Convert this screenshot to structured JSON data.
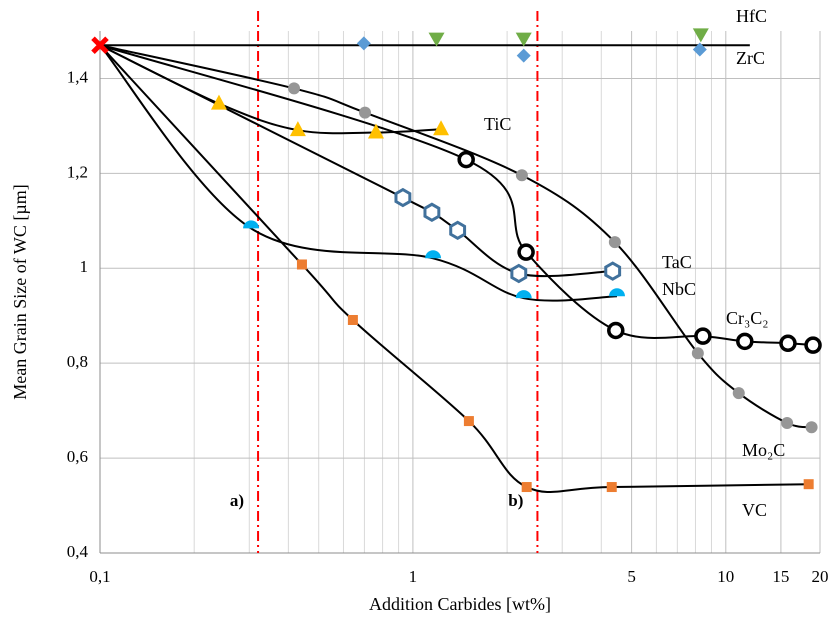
{
  "chart_data": {
    "type": "line",
    "xlabel": "Addition Carbides [wt%]",
    "ylabel": "Mean Grain Size of WC [µm]",
    "xscale": "log",
    "xlim": [
      0.1,
      20
    ],
    "ylim": [
      0.4,
      1.5
    ],
    "xticks": [
      {
        "value": 0.1,
        "label": "0,1"
      },
      1,
      5,
      10,
      15,
      20
    ],
    "yticks": [
      {
        "value": 0.4,
        "label": "0,4"
      },
      {
        "value": 0.6,
        "label": "0,6"
      },
      {
        "value": 0.8,
        "label": "0,8"
      },
      1,
      {
        "value": 1.2,
        "label": "1,2"
      },
      {
        "value": 1.4,
        "label": "1,4"
      }
    ],
    "x_minor_grid": [
      0.2,
      0.3,
      0.4,
      0.5,
      0.6,
      0.7,
      0.8,
      0.9,
      2,
      3,
      4,
      6,
      7,
      8,
      9
    ],
    "grid": true,
    "origin": {
      "x": 0.1,
      "y": 1.47,
      "color": "#ff0000"
    },
    "vlines": [
      {
        "x": 0.32,
        "label": "a)",
        "color": "#ff0000"
      },
      {
        "x": 2.5,
        "label": "b)",
        "color": "#ff0000"
      }
    ],
    "series": [
      {
        "name": "HfC",
        "color": "#70ad47",
        "marker": "triangle-down",
        "x": [
          1.19,
          2.26,
          8.32
        ],
        "values": [
          1.484,
          1.484,
          1.493
        ]
      },
      {
        "name": "ZrC",
        "color": "#5b9bd5",
        "marker": "diamond",
        "trend": "flat",
        "x": [
          0.697,
          2.26,
          8.26
        ],
        "values": [
          1.474,
          1.448,
          1.461
        ]
      },
      {
        "name": "TiC",
        "color": "#ffc000",
        "marker": "triangle",
        "x": [
          0.24,
          0.429,
          0.762,
          1.23
        ],
        "values": [
          1.347,
          1.291,
          1.286,
          1.293
        ]
      },
      {
        "name": "TaC",
        "color": "#41719c",
        "marker": "hexagon",
        "x": [
          0.929,
          1.15,
          1.39,
          2.18,
          4.35
        ],
        "values": [
          1.149,
          1.118,
          1.08,
          0.989,
          0.994
        ]
      },
      {
        "name": "NbC",
        "color": "#00b0f0",
        "marker": "half-circle",
        "x": [
          0.304,
          1.16,
          2.26,
          4.49
        ],
        "values": [
          1.084,
          1.021,
          0.937,
          0.941
        ]
      },
      {
        "name": "Cr₃C₂",
        "color": "#000000",
        "marker": "circle-open",
        "x": [
          1.48,
          2.3,
          4.45,
          8.45,
          11.5,
          15.8,
          19.0
        ],
        "values": [
          1.229,
          1.034,
          0.869,
          0.857,
          0.846,
          0.842,
          0.838
        ]
      },
      {
        "name": "Mo₂C",
        "color": "#969696",
        "marker": "circle",
        "x": [
          0.417,
          0.703,
          2.23,
          4.42,
          8.14,
          11.0,
          15.7,
          18.8
        ],
        "values": [
          1.379,
          1.328,
          1.196,
          1.055,
          0.821,
          0.737,
          0.674,
          0.665
        ]
      },
      {
        "name": "VC",
        "color": "#ed7d31",
        "marker": "square",
        "x": [
          0.442,
          0.643,
          1.51,
          2.31,
          4.32,
          18.4
        ],
        "values": [
          1.008,
          0.891,
          0.678,
          0.539,
          0.539,
          0.545
        ]
      }
    ]
  }
}
